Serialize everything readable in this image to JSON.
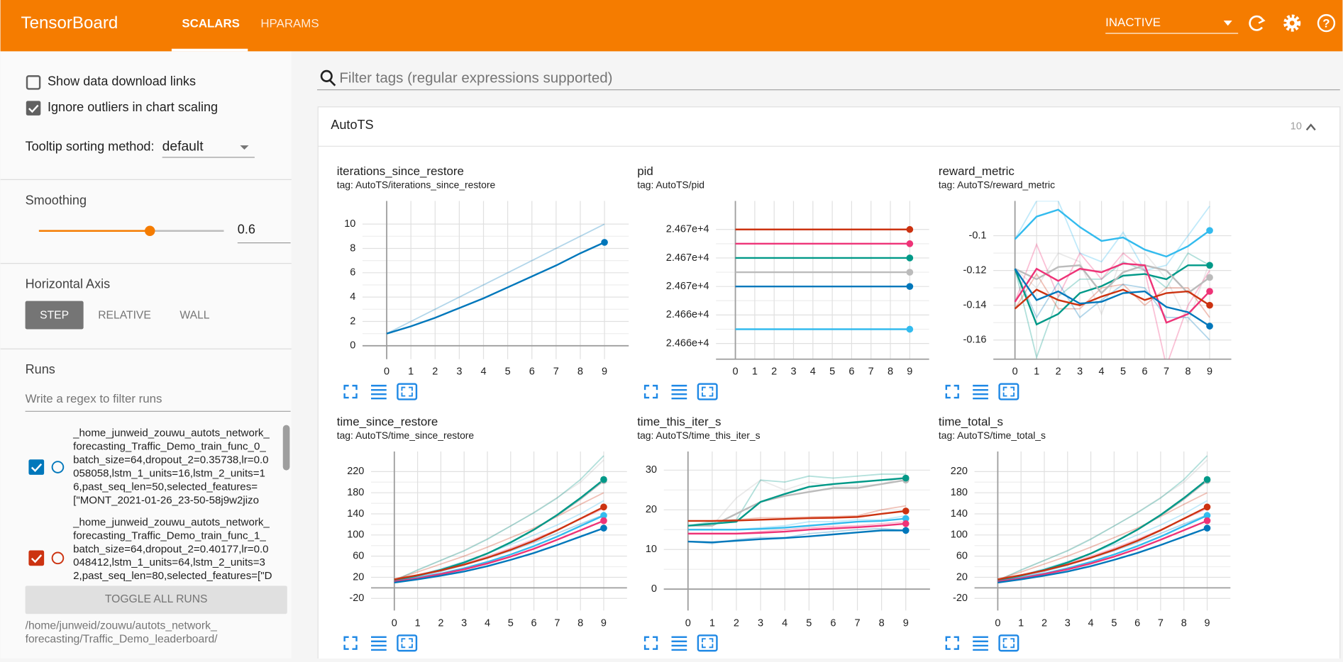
{
  "header": {
    "title": "TensorBoard",
    "tabs": [
      "SCALARS",
      "HPARAMS"
    ],
    "status": "INACTIVE"
  },
  "sidebar": {
    "options": [
      {
        "label": "Show data download links",
        "checked": false
      },
      {
        "label": "Ignore outliers in chart scaling",
        "checked": true
      }
    ],
    "tooltip_label": "Tooltip sorting method:",
    "tooltip_value": "default",
    "smoothing_label": "Smoothing",
    "smoothing_value": 0.6,
    "axis_label": "Horizontal Axis",
    "axis_options": [
      "STEP",
      "RELATIVE",
      "WALL"
    ],
    "runs_label": "Runs",
    "runs_filter": "Write a regex to filter runs",
    "runs": [
      {
        "color": "#0077bb",
        "lines": [
          "_home_junweid_zouwu_autots_network_",
          "forecasting_Traffic_Demo_train_func_0_",
          "batch_size=64,dropout_2=0.35738,lr=0.0",
          "058058,lstm_1_units=16,lstm_2_units=1",
          "6,past_seq_len=50,selected_features=",
          "[\"MONT_2021-01-26_23-50-58j9w2jizo"
        ]
      },
      {
        "color": "#cc3311",
        "lines": [
          "_home_junweid_zouwu_autots_network_",
          "forecasting_Traffic_Demo_train_func_1_",
          "batch_size=64,dropout_2=0.40177,lr=0.0",
          "048412,lstm_1_units=64,lstm_2_units=3",
          "2,past_seq_len=80,selected_features=[\"D"
        ]
      }
    ],
    "toggle": "TOGGLE ALL RUNS",
    "logdir": [
      "/home/junweid/zouwu/autots_network_",
      "forecasting/Traffic_Demo_leaderboard/"
    ]
  },
  "filter": "Filter tags (regular expressions supported)",
  "group": {
    "name": "AutoTS",
    "count": 10
  },
  "chart_data": [
    {
      "type": "line",
      "title": "iterations_since_restore",
      "subtitle": "tag: AutoTS/iterations_since_restore",
      "x": [
        0,
        1,
        2,
        3,
        4,
        5,
        6,
        7,
        8,
        9
      ],
      "xlim": [
        -1,
        10
      ],
      "xticks": [
        0,
        1,
        2,
        3,
        4,
        5,
        6,
        7,
        8,
        9
      ],
      "ylim": [
        -1.1,
        11.9
      ],
      "yticks": [
        0,
        2,
        4,
        6,
        8,
        10
      ],
      "series": [
        {
          "color": "#0077bb",
          "values": [
            1,
            1.6,
            2.3,
            3.1,
            3.9,
            4.8,
            5.7,
            6.6,
            7.6,
            8.5
          ],
          "raw": [
            1,
            2,
            3,
            4,
            5,
            6,
            7,
            8,
            9,
            10
          ]
        }
      ]
    },
    {
      "type": "line",
      "title": "pid",
      "subtitle": "tag: AutoTS/pid",
      "x": [
        0,
        1,
        2,
        3,
        4,
        5,
        6,
        7,
        8,
        9
      ],
      "xlim": [
        -1,
        10
      ],
      "xticks": [
        0,
        1,
        2,
        3,
        4,
        5,
        6,
        7,
        8,
        9
      ],
      "ylim": [
        24660.9,
        24672
      ],
      "yticks": [
        {
          "value": 24670,
          "label": "2.467e+4"
        },
        {
          "value": 24668,
          "label": "2.467e+4"
        },
        {
          "value": 24666,
          "label": "2.467e+4"
        },
        {
          "value": 24664,
          "label": "2.466e+4"
        },
        {
          "value": 24662,
          "label": "2.466e+4"
        }
      ],
      "series": [
        {
          "color": "#cc3311",
          "values": [
            24670,
            24670,
            24670,
            24670,
            24670,
            24670,
            24670,
            24670,
            24670,
            24670
          ]
        },
        {
          "color": "#ee3377",
          "values": [
            24669,
            24669,
            24669,
            24669,
            24669,
            24669,
            24669,
            24669,
            24669,
            24669
          ]
        },
        {
          "color": "#009988",
          "values": [
            24668,
            24668,
            24668,
            24668,
            24668,
            24668,
            24668,
            24668,
            24668,
            24668
          ]
        },
        {
          "color": "#bbbbbb",
          "values": [
            24667,
            24667,
            24667,
            24667,
            24667,
            24667,
            24667,
            24667,
            24667,
            24667
          ]
        },
        {
          "color": "#0077bb",
          "values": [
            24666,
            24666,
            24666,
            24666,
            24666,
            24666,
            24666,
            24666,
            24666,
            24666
          ]
        },
        {
          "color": "#33bbee",
          "values": [
            24663,
            24663,
            24663,
            24663,
            24663,
            24663,
            24663,
            24663,
            24663,
            24663
          ]
        }
      ]
    },
    {
      "type": "line",
      "title": "reward_metric",
      "subtitle": "tag: AutoTS/reward_metric",
      "x": [
        0,
        1,
        2,
        3,
        4,
        5,
        6,
        7,
        8,
        9
      ],
      "xlim": [
        -1,
        10
      ],
      "xticks": [
        0,
        1,
        2,
        3,
        4,
        5,
        6,
        7,
        8,
        9
      ],
      "ylim": [
        -0.171,
        -0.08
      ],
      "yticks": [
        -0.16,
        -0.14,
        -0.12,
        -0.1
      ],
      "series": [
        {
          "color": "#33bbee",
          "values": [
            -0.102,
            -0.089,
            -0.085,
            -0.095,
            -0.103,
            -0.101,
            -0.108,
            -0.112,
            -0.106,
            -0.097
          ],
          "raw": [
            -0.102,
            -0.08,
            -0.08,
            -0.11,
            -0.115,
            -0.098,
            -0.12,
            -0.117,
            -0.1,
            -0.083
          ]
        },
        {
          "color": "#009988",
          "values": [
            -0.119,
            -0.151,
            -0.145,
            -0.133,
            -0.129,
            -0.123,
            -0.122,
            -0.125,
            -0.117,
            -0.117
          ],
          "raw": [
            -0.119,
            -0.17,
            -0.135,
            -0.125,
            -0.125,
            -0.115,
            -0.12,
            -0.13,
            -0.11,
            -0.117
          ]
        },
        {
          "color": "#bbbbbb",
          "values": [
            -0.119,
            -0.125,
            -0.118,
            -0.117,
            -0.133,
            -0.121,
            -0.117,
            -0.12,
            -0.133,
            -0.124
          ],
          "raw": [
            -0.119,
            -0.13,
            -0.11,
            -0.115,
            -0.145,
            -0.11,
            -0.11,
            -0.125,
            -0.15,
            -0.115
          ]
        },
        {
          "color": "#ee3377",
          "values": [
            -0.138,
            -0.119,
            -0.126,
            -0.119,
            -0.121,
            -0.116,
            -0.117,
            -0.15,
            -0.145,
            -0.132
          ],
          "raw": [
            -0.138,
            -0.105,
            -0.135,
            -0.11,
            -0.125,
            -0.11,
            -0.12,
            -0.175,
            -0.14,
            -0.12
          ]
        },
        {
          "color": "#cc3311",
          "values": [
            -0.142,
            -0.131,
            -0.137,
            -0.14,
            -0.135,
            -0.131,
            -0.137,
            -0.133,
            -0.132,
            -0.14
          ],
          "raw": [
            -0.142,
            -0.122,
            -0.142,
            -0.142,
            -0.13,
            -0.128,
            -0.14,
            -0.13,
            -0.13,
            -0.147
          ]
        },
        {
          "color": "#0077bb",
          "values": [
            -0.119,
            -0.137,
            -0.132,
            -0.139,
            -0.138,
            -0.133,
            -0.132,
            -0.141,
            -0.144,
            -0.152
          ],
          "raw": [
            -0.119,
            -0.147,
            -0.127,
            -0.147,
            -0.137,
            -0.128,
            -0.13,
            -0.147,
            -0.147,
            -0.16
          ]
        }
      ]
    },
    {
      "type": "line",
      "title": "time_since_restore",
      "subtitle": "tag: AutoTS/time_since_restore",
      "x": [
        0,
        1,
        2,
        3,
        4,
        5,
        6,
        7,
        8,
        9
      ],
      "xlim": [
        -1,
        10
      ],
      "xticks": [
        0,
        1,
        2,
        3,
        4,
        5,
        6,
        7,
        8,
        9
      ],
      "ylim": [
        -43,
        258
      ],
      "yticks": [
        -20,
        20,
        60,
        100,
        140,
        180,
        220
      ],
      "series": [
        {
          "color": "#bbbbbb",
          "values": [
            14,
            23,
            34,
            48,
            65,
            86,
            110,
            137,
            168,
            203
          ],
          "raw": [
            14,
            33,
            52,
            71,
            93,
            117,
            143,
            171,
            200,
            242
          ]
        },
        {
          "color": "#009988",
          "values": [
            14,
            23,
            34,
            48,
            65,
            86,
            110,
            138,
            170,
            205
          ],
          "raw": [
            14,
            34,
            52,
            70,
            92,
            117,
            142,
            170,
            205,
            250
          ]
        },
        {
          "color": "#cc3311",
          "values": [
            16,
            24,
            33,
            44,
            57,
            72,
            89,
            109,
            131,
            153
          ],
          "raw": [
            16,
            30,
            45,
            60,
            77,
            95,
            113,
            135,
            158,
            180
          ]
        },
        {
          "color": "#33bbee",
          "values": [
            12,
            19,
            27,
            37,
            49,
            63,
            79,
            97,
            117,
            137
          ],
          "raw": [
            12,
            24,
            36,
            50,
            65,
            82,
            100,
            119,
            140,
            165
          ]
        },
        {
          "color": "#ee3377",
          "values": [
            12,
            18,
            26,
            35,
            46,
            59,
            74,
            91,
            109,
            127
          ],
          "raw": [
            12,
            22,
            33,
            46,
            60,
            75,
            92,
            110,
            130,
            150
          ]
        },
        {
          "color": "#0077bb",
          "values": [
            10,
            16,
            23,
            31,
            41,
            53,
            66,
            81,
            97,
            113
          ],
          "raw": [
            10,
            20,
            31,
            43,
            56,
            70,
            86,
            103,
            121,
            138
          ]
        }
      ]
    },
    {
      "type": "line",
      "title": "time_this_iter_s",
      "subtitle": "tag: AutoTS/time_this_iter_s",
      "x": [
        0,
        1,
        2,
        3,
        4,
        5,
        6,
        7,
        8,
        9
      ],
      "xlim": [
        -1,
        10
      ],
      "xticks": [
        0,
        1,
        2,
        3,
        4,
        5,
        6,
        7,
        8,
        9
      ],
      "ylim": [
        -5.4,
        34.7
      ],
      "yticks": [
        0,
        10,
        20,
        30
      ],
      "series": [
        {
          "color": "#bbbbbb",
          "values": [
            16,
            16,
            19,
            22,
            23.5,
            24.5,
            25.5,
            25.5,
            26.5,
            27.5
          ],
          "raw": [
            16,
            16,
            23,
            27.5,
            25,
            27,
            26,
            26,
            26.5,
            28.5
          ]
        },
        {
          "color": "#009988",
          "values": [
            16,
            16.5,
            17,
            22,
            24,
            25.8,
            26.5,
            27,
            27.5,
            28
          ],
          "raw": [
            16,
            17,
            17.5,
            27.5,
            27,
            28.5,
            28,
            28.5,
            29,
            29
          ]
        },
        {
          "color": "#cc3311",
          "values": [
            17.2,
            17.2,
            17.3,
            17.5,
            17.7,
            17.9,
            18,
            18.2,
            19,
            19.7
          ],
          "raw": [
            17.2,
            17.2,
            17.5,
            18,
            18,
            18.2,
            18.3,
            18.5,
            20,
            21
          ]
        },
        {
          "color": "#33bbee",
          "values": [
            15,
            15,
            15,
            15.2,
            15.5,
            16,
            16.5,
            17,
            17.2,
            17.8
          ],
          "raw": [
            15,
            15,
            15,
            15.5,
            16,
            17,
            17,
            17.5,
            17.5,
            18.5
          ]
        },
        {
          "color": "#ee3377",
          "values": [
            14,
            14,
            14,
            14.2,
            14.5,
            15,
            15.3,
            15.6,
            16,
            16.5
          ],
          "raw": [
            14,
            14,
            14,
            14.5,
            15,
            15.5,
            15.8,
            16,
            16.5,
            17
          ]
        },
        {
          "color": "#0077bb",
          "values": [
            12,
            11.8,
            12.2,
            12.6,
            12.9,
            13.3,
            13.8,
            14.3,
            14.8,
            14.8
          ],
          "raw": [
            12,
            11.5,
            12.5,
            13,
            13,
            14,
            14.5,
            15,
            15.3,
            14.8
          ]
        }
      ]
    },
    {
      "type": "line",
      "title": "time_total_s",
      "subtitle": "tag: AutoTS/time_total_s",
      "x": [
        0,
        1,
        2,
        3,
        4,
        5,
        6,
        7,
        8,
        9
      ],
      "xlim": [
        -1,
        10
      ],
      "xticks": [
        0,
        1,
        2,
        3,
        4,
        5,
        6,
        7,
        8,
        9
      ],
      "ylim": [
        -43,
        258
      ],
      "yticks": [
        -20,
        20,
        60,
        100,
        140,
        180,
        220
      ],
      "series": [
        {
          "color": "#bbbbbb",
          "values": [
            14,
            23,
            34,
            48,
            65,
            86,
            110,
            137,
            168,
            203
          ],
          "raw": [
            14,
            33,
            52,
            71,
            93,
            117,
            143,
            171,
            200,
            242
          ]
        },
        {
          "color": "#009988",
          "values": [
            14,
            23,
            34,
            48,
            65,
            86,
            110,
            138,
            170,
            205
          ],
          "raw": [
            14,
            34,
            52,
            70,
            92,
            117,
            142,
            170,
            205,
            250
          ]
        },
        {
          "color": "#cc3311",
          "values": [
            16,
            24,
            33,
            44,
            57,
            72,
            89,
            109,
            131,
            153
          ],
          "raw": [
            16,
            30,
            45,
            60,
            77,
            95,
            113,
            135,
            158,
            180
          ]
        },
        {
          "color": "#33bbee",
          "values": [
            12,
            19,
            27,
            37,
            49,
            63,
            79,
            97,
            117,
            137
          ],
          "raw": [
            12,
            24,
            36,
            50,
            65,
            82,
            100,
            119,
            140,
            165
          ]
        },
        {
          "color": "#ee3377",
          "values": [
            12,
            18,
            26,
            35,
            46,
            59,
            74,
            91,
            109,
            127
          ],
          "raw": [
            12,
            22,
            33,
            46,
            60,
            75,
            92,
            110,
            130,
            150
          ]
        },
        {
          "color": "#0077bb",
          "values": [
            10,
            16,
            23,
            31,
            41,
            53,
            66,
            81,
            97,
            113
          ],
          "raw": [
            10,
            20,
            31,
            43,
            56,
            70,
            86,
            103,
            121,
            138
          ]
        }
      ]
    }
  ]
}
